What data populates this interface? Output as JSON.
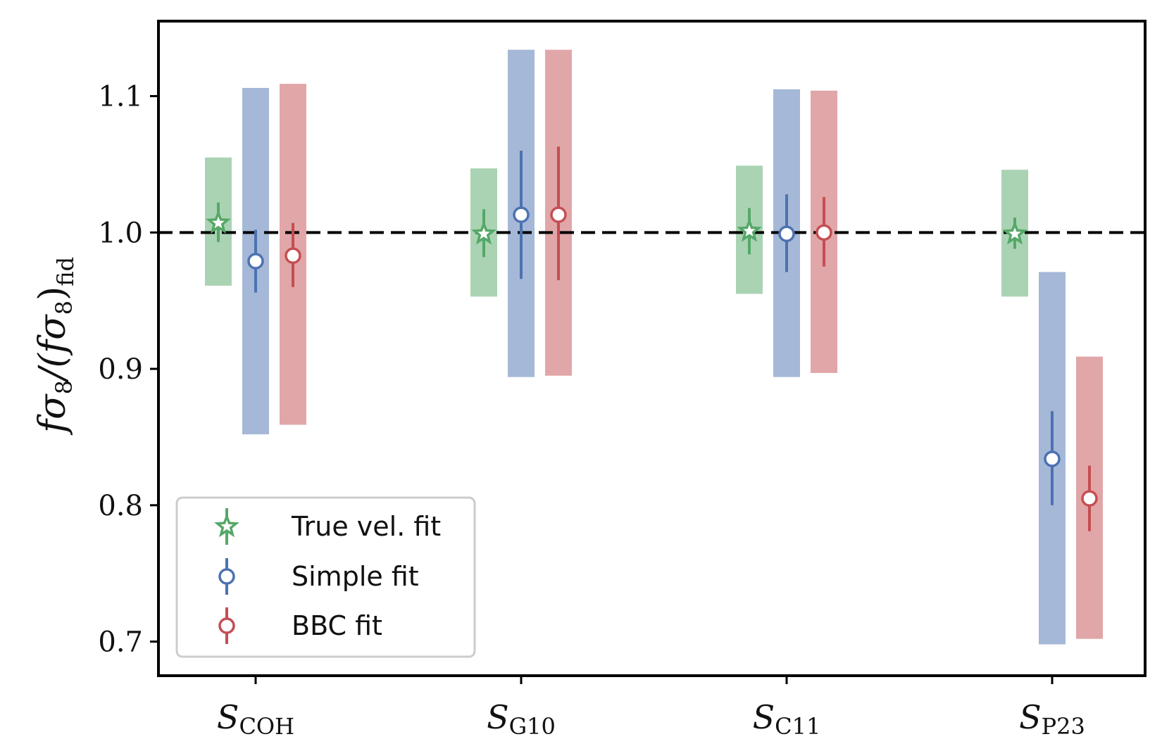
{
  "chart_data": {
    "type": "scatter",
    "ylabel": "fσ8/(fσ8)fid",
    "ylabel_parts": {
      "main": "fσ",
      "num_sub": "8",
      "slash": "/(fσ",
      "den_sub": "8",
      "close": ")",
      "fid": "fid"
    },
    "ylim": [
      0.675,
      1.155
    ],
    "yticks": [
      0.7,
      0.8,
      0.9,
      1.0,
      1.1
    ],
    "ytick_labels": [
      "0.7",
      "0.8",
      "0.9",
      "1.0",
      "1.1"
    ],
    "reference_line": 1.0,
    "categories": [
      {
        "main": "S",
        "sub": "COH"
      },
      {
        "main": "S",
        "sub": "G10"
      },
      {
        "main": "S",
        "sub": "C11"
      },
      {
        "main": "S",
        "sub": "P23"
      }
    ],
    "legend_position": "lower-left",
    "series": [
      {
        "name": "True vel. fit",
        "color": "#55a868",
        "marker": "star",
        "values": [
          1.007,
          0.999,
          1.001,
          0.999
        ],
        "err_low": [
          0.993,
          0.982,
          0.984,
          0.988
        ],
        "err_high": [
          1.022,
          1.017,
          1.018,
          1.011
        ],
        "band_low": [
          0.961,
          0.953,
          0.955,
          0.953
        ],
        "band_high": [
          1.055,
          1.047,
          1.049,
          1.046
        ]
      },
      {
        "name": "Simple fit",
        "color": "#4c72b0",
        "marker": "circle",
        "values": [
          0.979,
          1.013,
          0.999,
          0.834
        ],
        "err_low": [
          0.956,
          0.966,
          0.971,
          0.8
        ],
        "err_high": [
          1.002,
          1.06,
          1.028,
          0.869
        ],
        "band_low": [
          0.852,
          0.894,
          0.894,
          0.698
        ],
        "band_high": [
          1.106,
          1.134,
          1.105,
          0.971
        ]
      },
      {
        "name": "BBC fit",
        "color": "#c44e52",
        "marker": "circle",
        "values": [
          0.983,
          1.013,
          1.0,
          0.805
        ],
        "err_low": [
          0.96,
          0.965,
          0.975,
          0.781
        ],
        "err_high": [
          1.007,
          1.063,
          1.026,
          0.829
        ],
        "band_low": [
          0.859,
          0.895,
          0.897,
          0.702
        ],
        "band_high": [
          1.109,
          1.134,
          1.104,
          0.909
        ]
      }
    ]
  }
}
